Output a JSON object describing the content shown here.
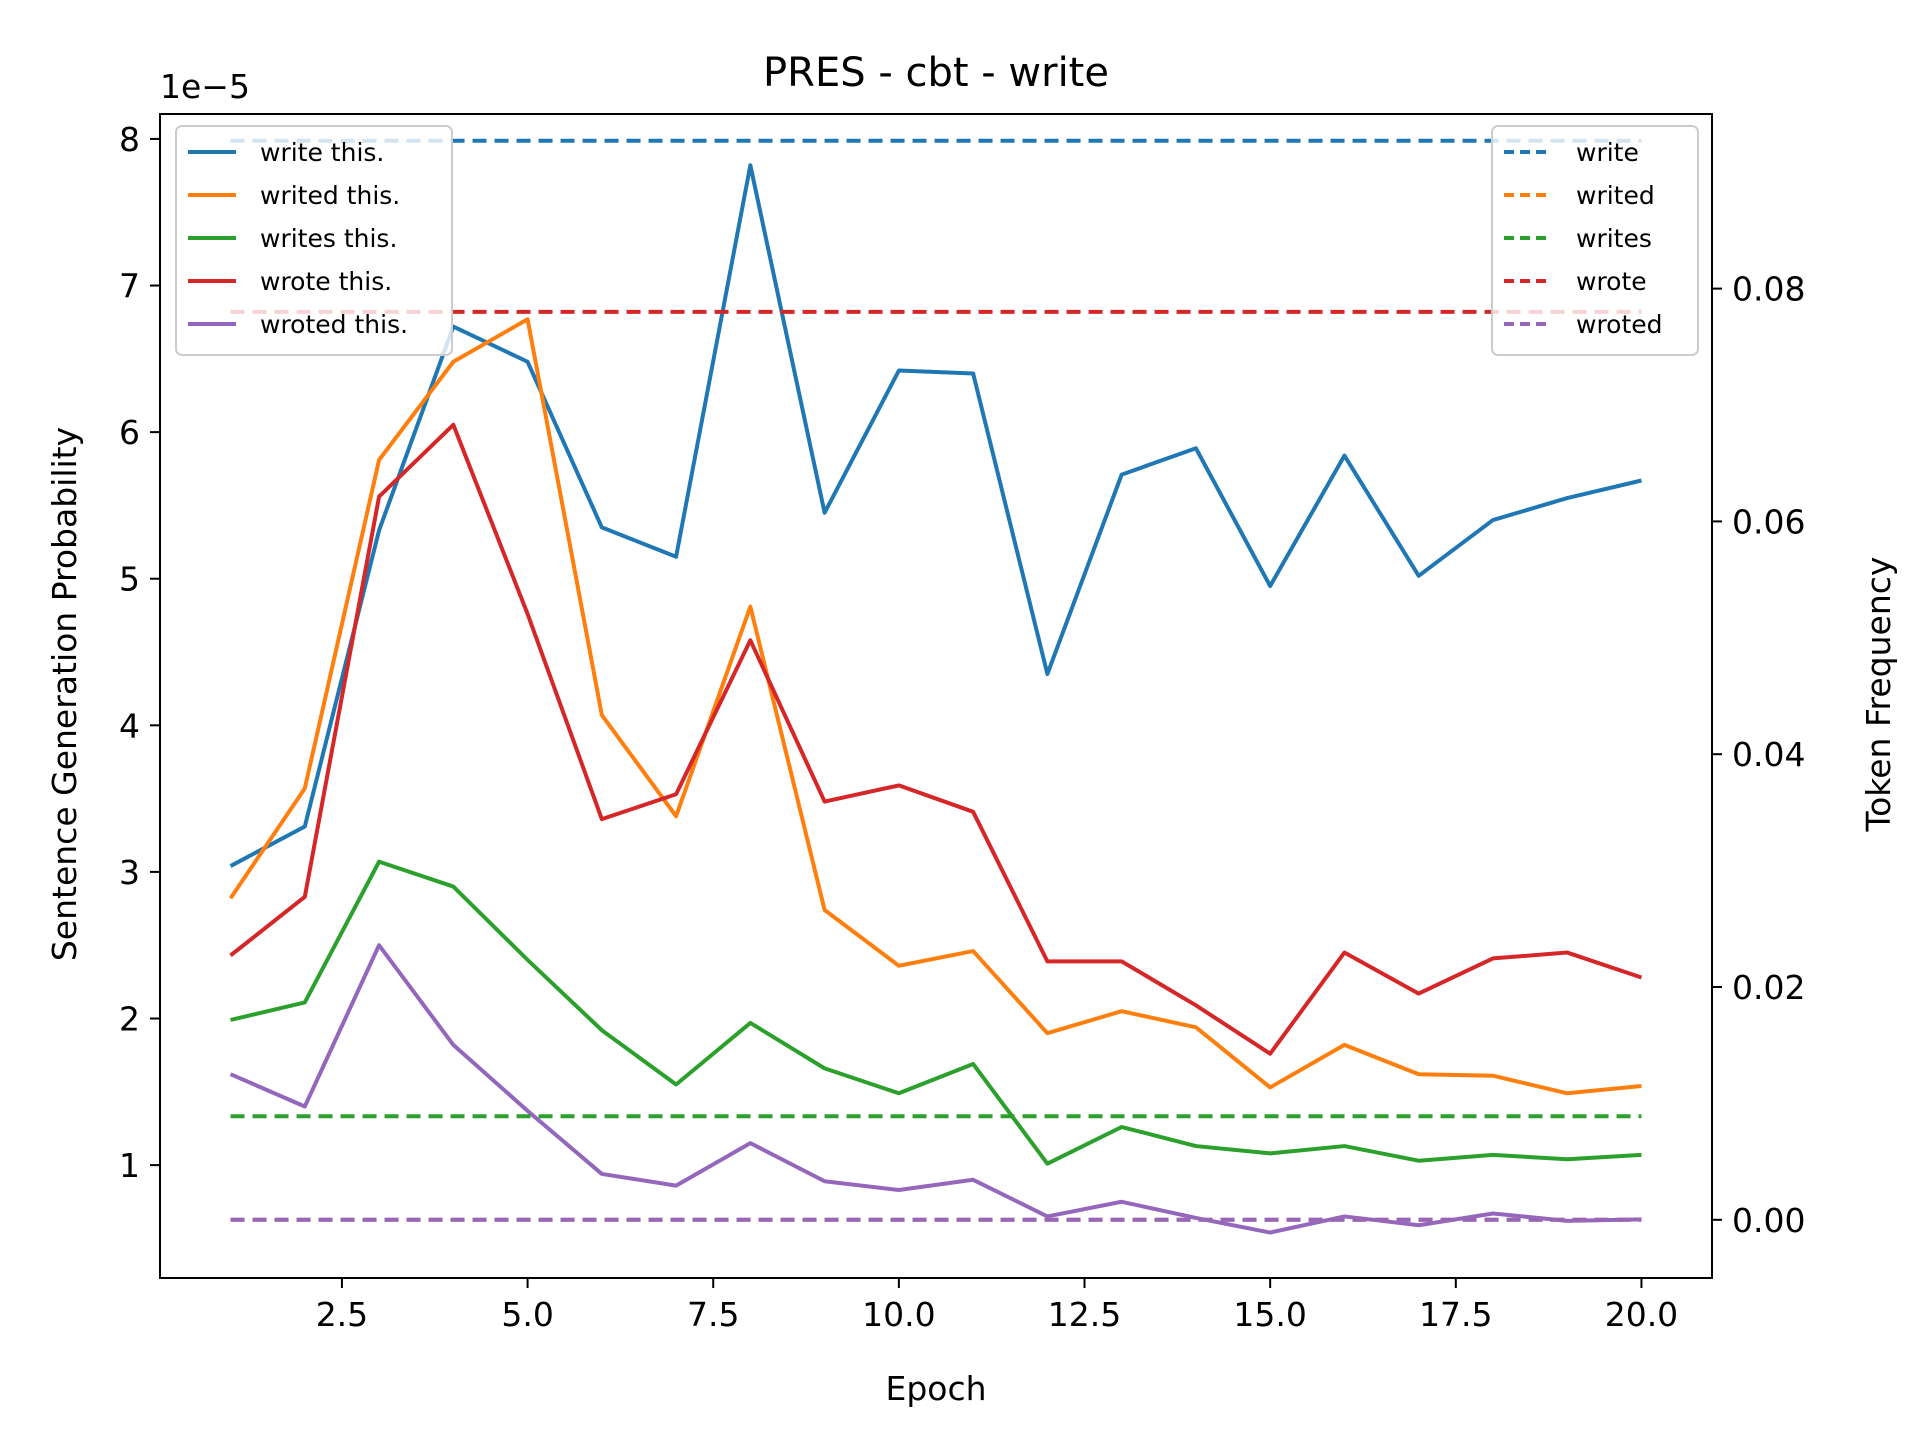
{
  "chart_data": {
    "type": "line",
    "title": "PRES - cbt - write",
    "xlabel": "Epoch",
    "ylabel": "Sentence Generation Probability",
    "y2label": "Token Frequency",
    "y_offset_label": "1e−5",
    "xlim": [
      0.05,
      20.95
    ],
    "ylim": [
      0.23,
      8.17
    ],
    "y2lim": [
      -0.005,
      0.095
    ],
    "x_ticks": [
      2.5,
      5.0,
      7.5,
      10.0,
      12.5,
      15.0,
      17.5,
      20.0
    ],
    "x_tick_labels": [
      "2.5",
      "5.0",
      "7.5",
      "10.0",
      "12.5",
      "15.0",
      "17.5",
      "20.0"
    ],
    "y_ticks": [
      1,
      2,
      3,
      4,
      5,
      6,
      7,
      8
    ],
    "y_tick_labels": [
      "1",
      "2",
      "3",
      "4",
      "5",
      "6",
      "7",
      "8"
    ],
    "y2_ticks": [
      0.0,
      0.02,
      0.04,
      0.06,
      0.08
    ],
    "y2_tick_labels": [
      "0.00",
      "0.02",
      "0.04",
      "0.06",
      "0.08"
    ],
    "grid": false,
    "legend_left_placement": "top-left",
    "legend_right_placement": "top-right",
    "x": [
      1,
      2,
      3,
      4,
      5,
      6,
      7,
      8,
      9,
      10,
      11,
      12,
      13,
      14,
      15,
      16,
      17,
      18,
      19,
      20
    ],
    "series": [
      {
        "name": "write this.",
        "color": "#1f77b4",
        "axis": "left",
        "values": [
          3.04,
          3.31,
          5.33,
          6.72,
          6.48,
          5.35,
          5.15,
          7.82,
          5.45,
          6.42,
          6.4,
          4.35,
          5.71,
          5.89,
          4.95,
          5.84,
          5.02,
          5.4,
          5.55,
          5.67
        ]
      },
      {
        "name": "writed this.",
        "color": "#ff7f0e",
        "axis": "left",
        "values": [
          2.82,
          3.57,
          5.81,
          6.48,
          6.77,
          4.07,
          3.38,
          4.81,
          2.74,
          2.36,
          2.46,
          1.9,
          2.05,
          1.94,
          1.53,
          1.82,
          1.62,
          1.61,
          1.49,
          1.54
        ]
      },
      {
        "name": "writes this.",
        "color": "#2ca02c",
        "axis": "left",
        "values": [
          1.99,
          2.11,
          3.07,
          2.9,
          2.4,
          1.92,
          1.55,
          1.97,
          1.66,
          1.49,
          1.69,
          1.01,
          1.26,
          1.13,
          1.08,
          1.13,
          1.03,
          1.07,
          1.04,
          1.07
        ]
      },
      {
        "name": "wrote this.",
        "color": "#d62728",
        "axis": "left",
        "values": [
          2.43,
          2.83,
          5.56,
          6.05,
          4.76,
          3.36,
          3.53,
          4.58,
          3.48,
          3.59,
          3.41,
          2.39,
          2.39,
          2.09,
          1.76,
          2.45,
          2.17,
          2.41,
          2.45,
          2.28
        ]
      },
      {
        "name": "wroted this.",
        "color": "#9467bd",
        "axis": "left",
        "values": [
          1.62,
          1.4,
          2.5,
          1.82,
          1.37,
          0.94,
          0.86,
          1.15,
          0.89,
          0.83,
          0.9,
          0.65,
          0.75,
          0.64,
          0.54,
          0.65,
          0.59,
          0.67,
          0.62,
          0.63
        ]
      }
    ],
    "frequency_series": [
      {
        "name": "write",
        "color": "#1f77b4",
        "axis": "right",
        "value": 0.0927
      },
      {
        "name": "writed",
        "color": "#ff7f0e",
        "axis": "right",
        "value": 0.0
      },
      {
        "name": "writes",
        "color": "#2ca02c",
        "axis": "right",
        "value": 0.0089
      },
      {
        "name": "wrote",
        "color": "#d62728",
        "axis": "right",
        "value": 0.078
      },
      {
        "name": "wroted",
        "color": "#9467bd",
        "axis": "right",
        "value": 0.0
      }
    ]
  }
}
